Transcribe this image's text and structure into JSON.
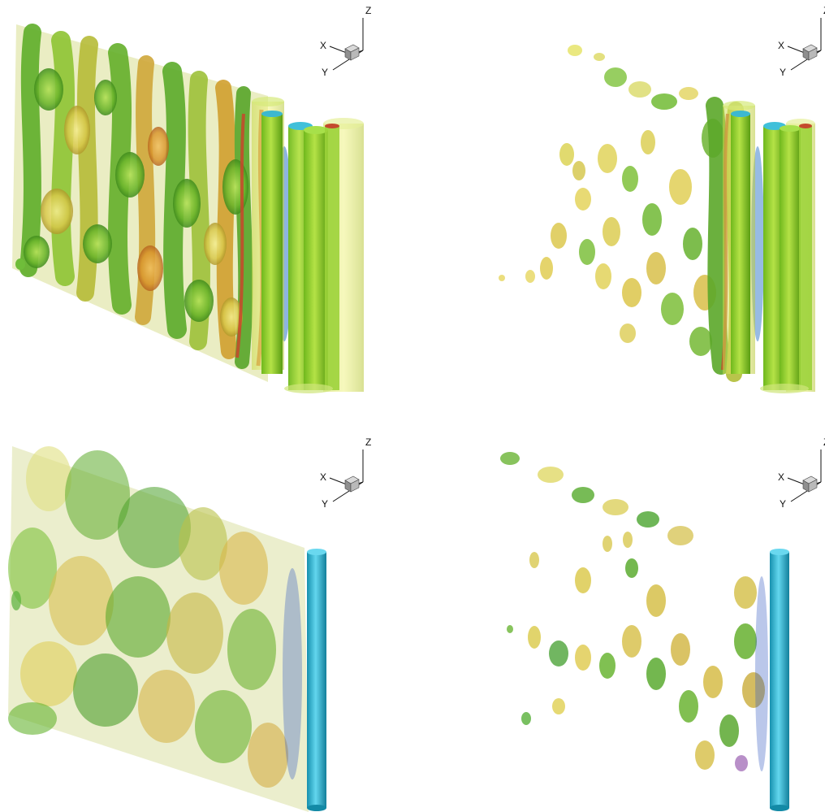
{
  "panels": [
    {
      "id": "top-left",
      "axes": {
        "x": "X",
        "y": "Y",
        "z": "Z"
      },
      "cylinders": "three",
      "cylinder_color": "#8cd21e",
      "mode": "dense-wake"
    },
    {
      "id": "top-right",
      "axes": {
        "x": "X",
        "y": "Y",
        "z": "Z"
      },
      "cylinders": "three",
      "cylinder_color": "#8cd21e",
      "mode": "sparse-wake"
    },
    {
      "id": "bottom-left",
      "axes": {
        "x": "X",
        "y": "Y",
        "z": "Z"
      },
      "cylinders": "one",
      "cylinder_color": "#27b5cf",
      "mode": "dense-wake"
    },
    {
      "id": "bottom-right",
      "axes": {
        "x": "X",
        "y": "Y",
        "z": "Z"
      },
      "cylinders": "one",
      "cylinder_color": "#27b5cf",
      "mode": "sparse-wake"
    }
  ],
  "palette": {
    "green": "#5fb52a",
    "dark_green": "#3d8f1c",
    "yellow": "#d7c83c",
    "orange": "#d8952a",
    "red": "#c2412a",
    "cyan": "#2ab8d2",
    "blue": "#3a5fc4"
  }
}
